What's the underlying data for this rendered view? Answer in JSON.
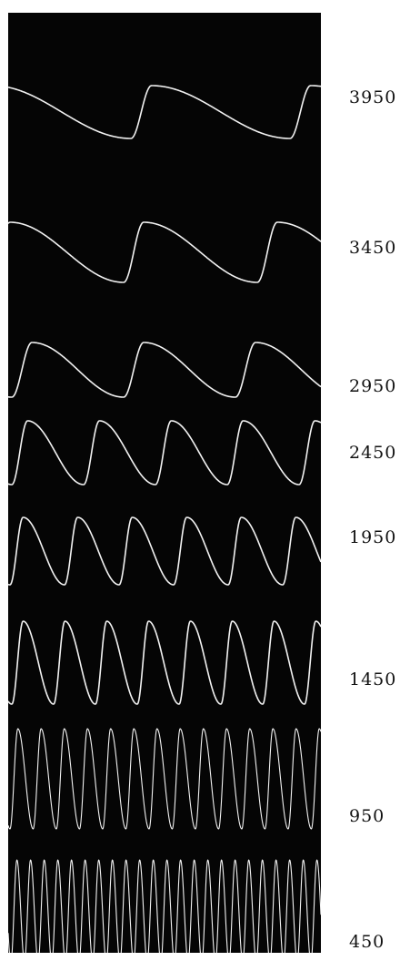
{
  "traces": [
    {
      "label": "3950"
    },
    {
      "label": "3450"
    },
    {
      "label": "2950"
    },
    {
      "label": "2450"
    },
    {
      "label": "1950"
    },
    {
      "label": "1450"
    },
    {
      "label": "950"
    },
    {
      "label": "450"
    }
  ]
}
